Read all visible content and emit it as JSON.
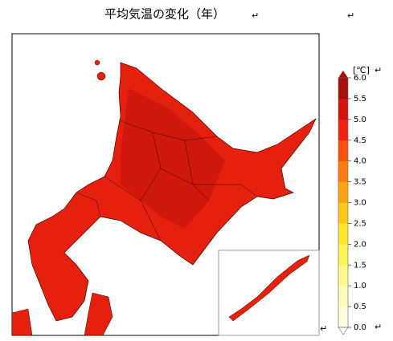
{
  "title": "平均気温の変化（年）",
  "paragraph_mark": "↵",
  "colorbar": {
    "label": "[℃]",
    "lim": [
      0,
      6
    ],
    "ticks": [
      {
        "value": 0,
        "label": "0.0"
      },
      0.5,
      {
        "value": 1,
        "label": "1.0"
      },
      1.5,
      {
        "value": 2,
        "label": "2.0"
      },
      2.5,
      {
        "value": 3,
        "label": "3.0"
      },
      3.5,
      {
        "value": 4,
        "label": "4.0"
      },
      4.5,
      {
        "value": 5,
        "label": "5.0"
      },
      5.5,
      {
        "value": 6,
        "label": "6.0"
      }
    ],
    "colors": [
      "#fffde0",
      "#fffbb8",
      "#fff88a",
      "#fff35a",
      "#ffe52a",
      "#ffc817",
      "#ffa40e",
      "#ff7d0a",
      "#ff4e0a",
      "#f2200e",
      "#d4130f",
      "#a80c0c"
    ]
  }
}
